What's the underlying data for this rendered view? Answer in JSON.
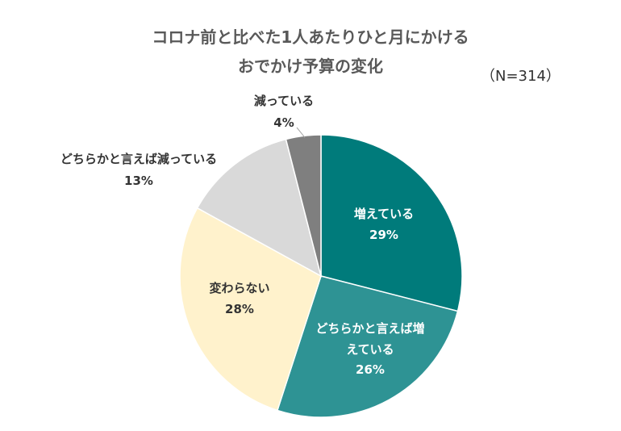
{
  "title_line1": "コロナ前と比べた1人あたりひと月にかける",
  "title_line2": "おでかけ予算の変化",
  "sample_note": "（N=314）",
  "chart_data": {
    "type": "pie",
    "title": "コロナ前と比べた1人あたりひと月にかけるおでかけ予算の変化",
    "unit": "%",
    "slices": [
      {
        "label": [
          "増えている"
        ],
        "value": 29,
        "value_text": "29%",
        "color": "#007B7B",
        "text_color": "#ffffff"
      },
      {
        "label": [
          "どちらかと言えば増",
          "えている"
        ],
        "value": 26,
        "value_text": "26%",
        "color": "#2E9394",
        "text_color": "#ffffff"
      },
      {
        "label": [
          "変わらない"
        ],
        "value": 28,
        "value_text": "28%",
        "color": "#FFF2CC",
        "text_color": "#333333"
      },
      {
        "label": [
          "どちらかと言えば減っている"
        ],
        "value": 13,
        "value_text": "13%",
        "color": "#D9D9D9",
        "text_color": "#333333"
      },
      {
        "label": [
          "減っている"
        ],
        "value": 4,
        "value_text": "4%",
        "color": "#7F7F7F",
        "text_color": "#333333"
      }
    ]
  }
}
